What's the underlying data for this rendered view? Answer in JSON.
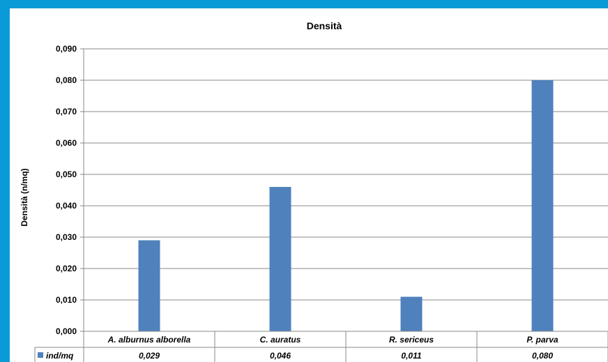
{
  "chart_data": {
    "type": "bar",
    "title": "Densità",
    "ylabel": "Densità (n/mq)",
    "xlabel": "",
    "categories": [
      "A. alburnus alborella",
      "C. auratus",
      "R. sericeus",
      "P. parva"
    ],
    "series": [
      {
        "name": "ind/mq",
        "values": [
          0.029,
          0.046,
          0.011,
          0.08
        ],
        "labels": [
          "0,029",
          "0,046",
          "0,011",
          "0,080"
        ]
      }
    ],
    "ylim": [
      0,
      0.09
    ],
    "yticks": [
      "0,000",
      "0,010",
      "0,020",
      "0,030",
      "0,040",
      "0,050",
      "0,060",
      "0,070",
      "0,080",
      "0,090"
    ],
    "grid": true,
    "legend": "data-table",
    "colors": {
      "bar": "#4f81bd",
      "grid": "#888888",
      "background": "#0a9ad8"
    }
  }
}
